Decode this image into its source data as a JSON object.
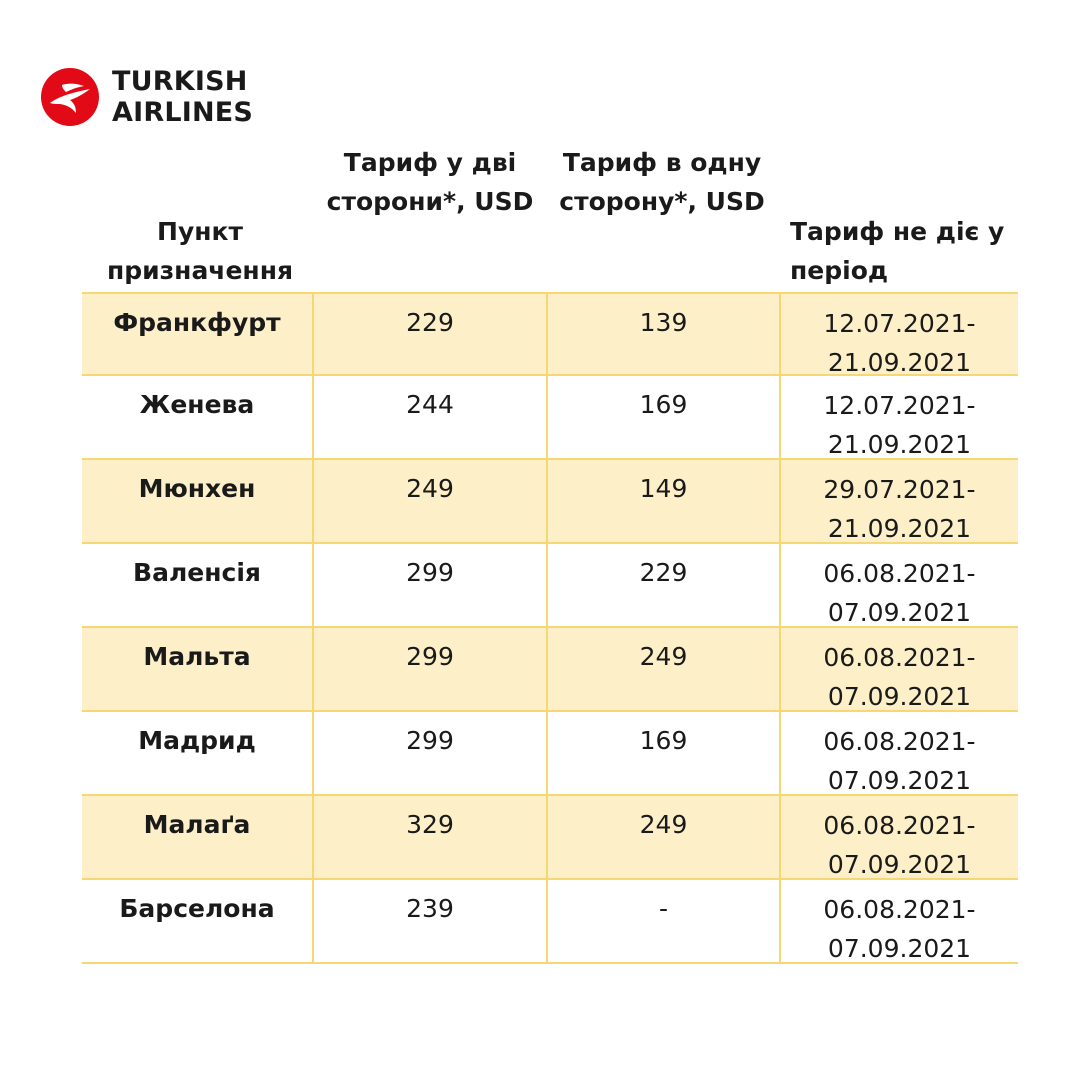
{
  "brand": {
    "line1": "TURKISH",
    "line2": "AIRLINES",
    "logo_icon": "turkish-airlines-crane-icon",
    "color": "#e30a17"
  },
  "table": {
    "headers": {
      "destination": [
        "Пункт",
        "призначення"
      ],
      "round_trip": [
        "Тариф у дві",
        "сторони*, USD"
      ],
      "one_way": [
        "Тариф в одну",
        "сторону*, USD"
      ],
      "blackout": [
        "Тариф не діє у",
        "період"
      ]
    },
    "rows": [
      {
        "destination": "Франкфурт",
        "round_trip": "229",
        "one_way": "139",
        "period_from": "12.07.2021-",
        "period_to": "21.09.2021"
      },
      {
        "destination": "Женева",
        "round_trip": "244",
        "one_way": "169",
        "period_from": "12.07.2021-",
        "period_to": "21.09.2021"
      },
      {
        "destination": "Мюнхен",
        "round_trip": "249",
        "one_way": "149",
        "period_from": "29.07.2021-",
        "period_to": "21.09.2021"
      },
      {
        "destination": "Валенсія",
        "round_trip": "299",
        "one_way": "229",
        "period_from": "06.08.2021-",
        "period_to": "07.09.2021"
      },
      {
        "destination": "Мальта",
        "round_trip": "299",
        "one_way": "249",
        "period_from": "06.08.2021-",
        "period_to": "07.09.2021"
      },
      {
        "destination": "Мадрид",
        "round_trip": "299",
        "one_way": "169",
        "period_from": "06.08.2021-",
        "period_to": "07.09.2021"
      },
      {
        "destination": "Малаґа",
        "round_trip": "329",
        "one_way": "249",
        "period_from": "06.08.2021-",
        "period_to": "07.09.2021"
      },
      {
        "destination": "Барселона",
        "round_trip": "239",
        "one_way": "-",
        "period_from": "06.08.2021-",
        "period_to": "07.09.2021"
      }
    ],
    "colors": {
      "stripe": "#fdf0c9",
      "border": "#f5d774"
    }
  }
}
